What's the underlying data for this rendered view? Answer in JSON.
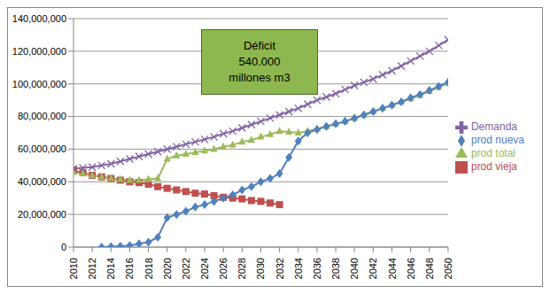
{
  "chart_data": {
    "type": "line",
    "annotation": [
      "Déficit",
      "540.000",
      "millones m3"
    ],
    "x": [
      2010,
      2011,
      2012,
      2013,
      2014,
      2015,
      2016,
      2017,
      2018,
      2019,
      2020,
      2021,
      2022,
      2023,
      2024,
      2025,
      2026,
      2027,
      2028,
      2029,
      2030,
      2031,
      2032,
      2033,
      2034,
      2035,
      2036,
      2037,
      2038,
      2039,
      2040,
      2041,
      2042,
      2043,
      2044,
      2045,
      2046,
      2047,
      2048,
      2049,
      2050
    ],
    "xlim": [
      2010,
      2050
    ],
    "xticks": [
      2010,
      2012,
      2014,
      2016,
      2018,
      2020,
      2022,
      2024,
      2026,
      2028,
      2030,
      2032,
      2034,
      2036,
      2038,
      2040,
      2042,
      2044,
      2046,
      2048,
      2050
    ],
    "ylim": [
      0,
      140000000
    ],
    "yticks": [
      0,
      {
        "value": 20000000,
        "label": "20,000,000"
      },
      {
        "value": 40000000,
        "label": "40,000,000"
      },
      {
        "value": 60000000,
        "label": "60,000,000"
      },
      {
        "value": 80000000,
        "label": "80,000,000"
      },
      {
        "value": 100000000,
        "label": "100,000,000"
      },
      {
        "value": 120000000,
        "label": "120,000,000"
      },
      {
        "value": 140000000,
        "label": "140,000,000"
      }
    ],
    "grid": true,
    "legend": "right",
    "series": [
      {
        "name": "prod vieja",
        "color": "#c0504d",
        "marker": "square",
        "values": [
          47000000,
          45500000,
          44000000,
          43000000,
          42000000,
          41000000,
          40000000,
          39500000,
          38500000,
          37000000,
          36000000,
          35000000,
          34000000,
          33000000,
          32500000,
          31500000,
          30500000,
          30000000,
          29500000,
          28500000,
          28000000,
          27000000,
          26000000,
          null,
          null,
          null,
          null,
          null,
          null,
          null,
          null,
          null,
          null,
          null,
          null,
          null,
          null,
          null,
          null,
          null,
          null
        ]
      },
      {
        "name": "prod total",
        "color": "#9bbb59",
        "marker": "triangle",
        "values": [
          46000000,
          45000000,
          44000000,
          43000000,
          42000000,
          41500000,
          41000000,
          41000000,
          41500000,
          42000000,
          54000000,
          56000000,
          57000000,
          58000000,
          59000000,
          60000000,
          61500000,
          62500000,
          64500000,
          65500000,
          67500000,
          69000000,
          71000000,
          70500000,
          70000000,
          71000000,
          72500000,
          74000000,
          75500000,
          77000000,
          79000000,
          81000000,
          83000000,
          85000000,
          87000000,
          89000000,
          91000000,
          93000000,
          95500000,
          98000000,
          100500000
        ]
      },
      {
        "name": "prod nueva",
        "color": "#4f81bd",
        "marker": "diamond",
        "values": [
          null,
          null,
          null,
          0,
          300000,
          500000,
          1000000,
          2000000,
          3000000,
          6000000,
          18000000,
          20000000,
          22000000,
          24500000,
          26000000,
          28000000,
          30000000,
          32000000,
          35000000,
          37000000,
          40000000,
          42000000,
          45000000,
          55000000,
          65000000,
          70000000,
          72000000,
          74000000,
          75500000,
          77000000,
          79000000,
          81000000,
          83000000,
          85000000,
          87000000,
          89000000,
          91500000,
          93500000,
          96000000,
          98500000,
          101000000
        ]
      },
      {
        "name": "Demanda",
        "color": "#8064a2",
        "marker": "x",
        "values": [
          48000000,
          48500000,
          49000000,
          50000000,
          51000000,
          52500000,
          54000000,
          55500000,
          57000000,
          58500000,
          60000000,
          61500000,
          63000000,
          64500000,
          66000000,
          67500000,
          69500000,
          71000000,
          73000000,
          75000000,
          77000000,
          79000000,
          81000000,
          83000000,
          85000000,
          87500000,
          90000000,
          92000000,
          94000000,
          96500000,
          99000000,
          101000000,
          103000000,
          105500000,
          108000000,
          111000000,
          114000000,
          117000000,
          120000000,
          123500000,
          127000000
        ]
      }
    ]
  }
}
